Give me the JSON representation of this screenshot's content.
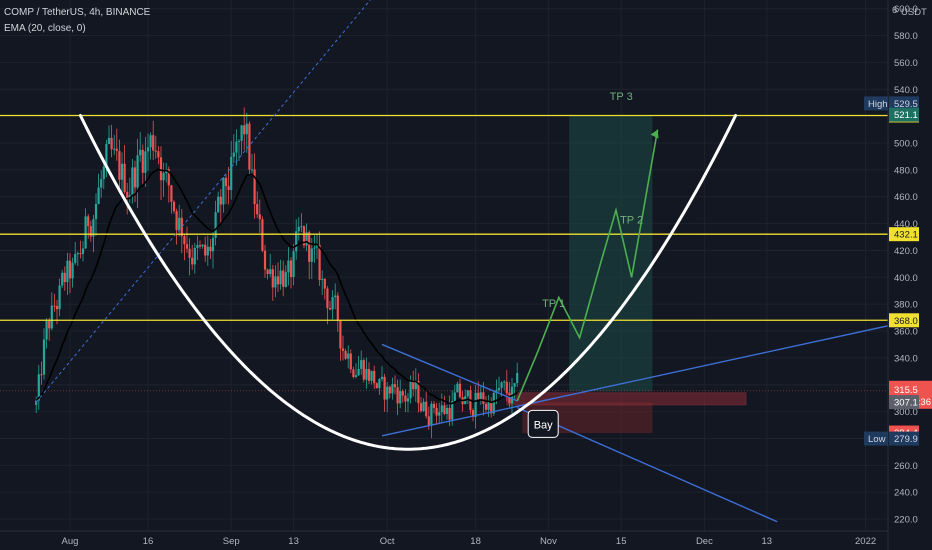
{
  "header": {
    "symbol_line": "COMP / TetherUS, 4h, BINANCE",
    "indicator_line": "EMA (20, close, 0)"
  },
  "axis": {
    "currency": "USDT",
    "high_label": "High",
    "low_label": "Low",
    "top_cut_label": "620.0"
  },
  "colors": {
    "background": "#131722",
    "bull": "#26a69a",
    "bear": "#ef5350",
    "level": "#f0e130",
    "trend": "#3d6fd6",
    "cup": "#ffffff",
    "ema": "#000000",
    "path": "#4caf50",
    "target_zone": "#1e4a45",
    "stop_zone": "#5a2228"
  },
  "chart_data": {
    "type": "candlestick",
    "title": "COMP / TetherUS, 4h, BINANCE",
    "indicator": "EMA (20, close, 0)",
    "ylim": [
      214,
      625
    ],
    "y_ticks": [
      600,
      580,
      560,
      540,
      520,
      500,
      480,
      460,
      440,
      420,
      400,
      380,
      360,
      340,
      320,
      300,
      280,
      260,
      240,
      220
    ],
    "x_ticks": [
      {
        "label": "Aug",
        "day": 0
      },
      {
        "label": "16",
        "day": 15
      },
      {
        "label": "Sep",
        "day": 31
      },
      {
        "label": "13",
        "day": 43
      },
      {
        "label": "Oct",
        "day": 61
      },
      {
        "label": "18",
        "day": 78
      },
      {
        "label": "Nov",
        "day": 92
      },
      {
        "label": "15",
        "day": 106
      },
      {
        "label": "Dec",
        "day": 122
      },
      {
        "label": "13",
        "day": 134
      },
      {
        "label": "2022",
        "day": 153
      }
    ],
    "price_path": [
      [
        -6.5,
        305
      ],
      [
        -5,
        360
      ],
      [
        -3,
        380
      ],
      [
        -1,
        400
      ],
      [
        1,
        405
      ],
      [
        3,
        440
      ],
      [
        5,
        465
      ],
      [
        7,
        485
      ],
      [
        9,
        475
      ],
      [
        11,
        470
      ],
      [
        13,
        490
      ],
      [
        15,
        500
      ],
      [
        16.5,
        505
      ],
      [
        18,
        470
      ],
      [
        20,
        450
      ],
      [
        22,
        430
      ],
      [
        24,
        415
      ],
      [
        26,
        410
      ],
      [
        28,
        440
      ],
      [
        30,
        470
      ],
      [
        32,
        490
      ],
      [
        33.5,
        515
      ],
      [
        34.5,
        470
      ],
      [
        36,
        430
      ],
      [
        38,
        400
      ],
      [
        40,
        410
      ],
      [
        42,
        395
      ],
      [
        44,
        430
      ],
      [
        46,
        420
      ],
      [
        48,
        395
      ],
      [
        50,
        380
      ],
      [
        52,
        350
      ],
      [
        54,
        340
      ],
      [
        56,
        335
      ],
      [
        58,
        325
      ],
      [
        60,
        310
      ],
      [
        62,
        320
      ],
      [
        64,
        310
      ],
      [
        66,
        315
      ],
      [
        68,
        300
      ],
      [
        70,
        305
      ],
      [
        72,
        300
      ],
      [
        74,
        310
      ],
      [
        76,
        305
      ],
      [
        78,
        310
      ],
      [
        80,
        305
      ],
      [
        82,
        315
      ],
      [
        84,
        310
      ],
      [
        86,
        315
      ]
    ],
    "levels": [
      {
        "value": 520.5,
        "label": "520.5"
      },
      {
        "value": 432.1,
        "label": "432.1"
      },
      {
        "value": 368.0,
        "label": "368.0"
      }
    ],
    "price_tags": [
      {
        "value": 529.5,
        "label": "529.5",
        "kind": "high"
      },
      {
        "value": 521.1,
        "label": "521.1",
        "kind": "green"
      },
      {
        "value": 315.5,
        "label": "315.5",
        "kind": "last",
        "countdown": "01:48:36"
      },
      {
        "value": 307.1,
        "label": "307.1",
        "kind": "gray"
      },
      {
        "value": 284.4,
        "label": "284.4",
        "kind": "red"
      },
      {
        "value": 279.9,
        "label": "279.9",
        "kind": "low"
      }
    ],
    "annotations": [
      {
        "text": "TP 3",
        "day": 106,
        "value": 532
      },
      {
        "text": "TP 2",
        "day": 108,
        "value": 440
      },
      {
        "text": "TP 1",
        "day": 93,
        "value": 378
      },
      {
        "text": "Bay",
        "day": 91,
        "value": 292
      }
    ],
    "cup": {
      "vertex_day": 65,
      "vertex_value": 272,
      "right_day": 128,
      "right_value": 520.5
    },
    "projection_path": [
      [
        86,
        308
      ],
      [
        90,
        345
      ],
      [
        94,
        385
      ],
      [
        98,
        355
      ],
      [
        102,
        410
      ],
      [
        105,
        450
      ],
      [
        108,
        400
      ],
      [
        113,
        510
      ]
    ],
    "trendlines": [
      {
        "from": [
          -6.5,
          307
        ],
        "to": [
          63,
          631
        ]
      },
      {
        "from": [
          60,
          350
        ],
        "to": [
          86,
          308
        ]
      },
      {
        "from": [
          60,
          282
        ],
        "to": [
          161,
          367
        ]
      },
      {
        "from": [
          86,
          303
        ],
        "to": [
          136,
          218
        ]
      }
    ],
    "target_zone": {
      "day_from": 96,
      "day_to": 112,
      "value_from": 315,
      "value_to": 520.5
    },
    "stop_zone": {
      "day_from": 87,
      "day_to": 112,
      "value_from": 284,
      "value_to": 307
    },
    "entry_box": {
      "day_from": 84,
      "day_to": 130,
      "value_from": 305,
      "value_to": 314
    }
  }
}
